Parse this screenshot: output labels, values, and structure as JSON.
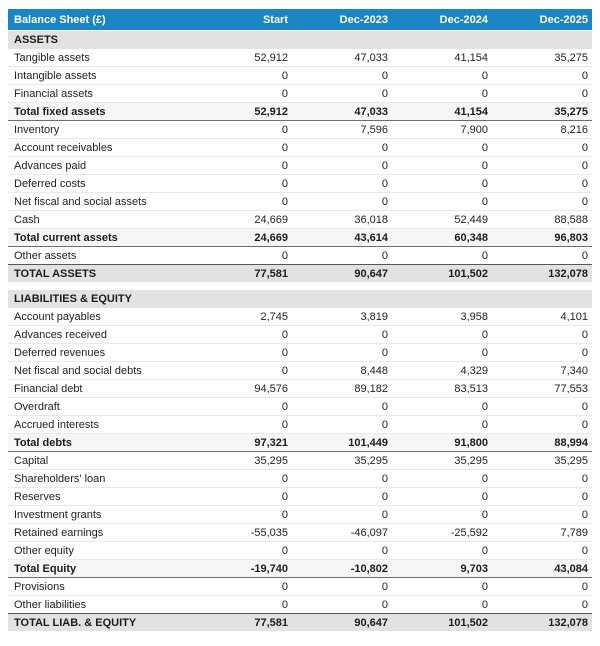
{
  "header": {
    "title": "Balance Sheet (£)",
    "columns": [
      "Start",
      "Dec-2023",
      "Dec-2024",
      "Dec-2025"
    ]
  },
  "colors": {
    "header_bg": "#1b84c5",
    "header_text": "#ffffff",
    "section_bg": "#e2e2e2",
    "subtotal_bg": "#f6f6f6",
    "grandtotal_bg": "#e2e2e2",
    "row_border": "#e9e9e9",
    "total_border": "#565656"
  },
  "sections": [
    {
      "title": "ASSETS",
      "rows": [
        {
          "label": "Tangible assets",
          "values": [
            "52,912",
            "47,033",
            "41,154",
            "35,275"
          ],
          "style": "normal"
        },
        {
          "label": "Intangible assets",
          "values": [
            "0",
            "0",
            "0",
            "0"
          ],
          "style": "normal"
        },
        {
          "label": "Financial assets",
          "values": [
            "0",
            "0",
            "0",
            "0"
          ],
          "style": "normal"
        },
        {
          "label": "Total fixed assets",
          "values": [
            "52,912",
            "47,033",
            "41,154",
            "35,275"
          ],
          "style": "subtotal"
        },
        {
          "label": "Inventory",
          "values": [
            "0",
            "7,596",
            "7,900",
            "8,216"
          ],
          "style": "normal"
        },
        {
          "label": "Account receivables",
          "values": [
            "0",
            "0",
            "0",
            "0"
          ],
          "style": "normal"
        },
        {
          "label": "Advances paid",
          "values": [
            "0",
            "0",
            "0",
            "0"
          ],
          "style": "normal"
        },
        {
          "label": "Deferred costs",
          "values": [
            "0",
            "0",
            "0",
            "0"
          ],
          "style": "normal"
        },
        {
          "label": "Net fiscal and social assets",
          "values": [
            "0",
            "0",
            "0",
            "0"
          ],
          "style": "normal"
        },
        {
          "label": "Cash",
          "values": [
            "24,669",
            "36,018",
            "52,449",
            "88,588"
          ],
          "style": "normal"
        },
        {
          "label": "Total current assets",
          "values": [
            "24,669",
            "43,614",
            "60,348",
            "96,803"
          ],
          "style": "subtotal"
        },
        {
          "label": "Other assets",
          "values": [
            "0",
            "0",
            "0",
            "0"
          ],
          "style": "normal"
        },
        {
          "label": "TOTAL ASSETS",
          "values": [
            "77,581",
            "90,647",
            "101,502",
            "132,078"
          ],
          "style": "grandtotal"
        }
      ]
    },
    {
      "title": "LIABILITIES & EQUITY",
      "rows": [
        {
          "label": "Account payables",
          "values": [
            "2,745",
            "3,819",
            "3,958",
            "4,101"
          ],
          "style": "normal"
        },
        {
          "label": "Advances received",
          "values": [
            "0",
            "0",
            "0",
            "0"
          ],
          "style": "normal"
        },
        {
          "label": "Deferred revenues",
          "values": [
            "0",
            "0",
            "0",
            "0"
          ],
          "style": "normal"
        },
        {
          "label": "Net fiscal and social debts",
          "values": [
            "0",
            "8,448",
            "4,329",
            "7,340"
          ],
          "style": "normal"
        },
        {
          "label": "Financial debt",
          "values": [
            "94,576",
            "89,182",
            "83,513",
            "77,553"
          ],
          "style": "normal"
        },
        {
          "label": "Overdraft",
          "values": [
            "0",
            "0",
            "0",
            "0"
          ],
          "style": "normal"
        },
        {
          "label": "Accrued interests",
          "values": [
            "0",
            "0",
            "0",
            "0"
          ],
          "style": "normal"
        },
        {
          "label": "Total debts",
          "values": [
            "97,321",
            "101,449",
            "91,800",
            "88,994"
          ],
          "style": "subtotal"
        },
        {
          "label": "Capital",
          "values": [
            "35,295",
            "35,295",
            "35,295",
            "35,295"
          ],
          "style": "normal"
        },
        {
          "label": "Shareholders' loan",
          "values": [
            "0",
            "0",
            "0",
            "0"
          ],
          "style": "normal"
        },
        {
          "label": "Reserves",
          "values": [
            "0",
            "0",
            "0",
            "0"
          ],
          "style": "normal"
        },
        {
          "label": "Investment grants",
          "values": [
            "0",
            "0",
            "0",
            "0"
          ],
          "style": "normal"
        },
        {
          "label": "Retained earnings",
          "values": [
            "-55,035",
            "-46,097",
            "-25,592",
            "7,789"
          ],
          "style": "normal"
        },
        {
          "label": "Other equity",
          "values": [
            "0",
            "0",
            "0",
            "0"
          ],
          "style": "normal"
        },
        {
          "label": "Total Equity",
          "values": [
            "-19,740",
            "-10,802",
            "9,703",
            "43,084"
          ],
          "style": "subtotal"
        },
        {
          "label": "Provisions",
          "values": [
            "0",
            "0",
            "0",
            "0"
          ],
          "style": "normal"
        },
        {
          "label": "Other liabilities",
          "values": [
            "0",
            "0",
            "0",
            "0"
          ],
          "style": "normal"
        },
        {
          "label": "TOTAL LIAB. & EQUITY",
          "values": [
            "77,581",
            "90,647",
            "101,502",
            "132,078"
          ],
          "style": "grandtotal"
        }
      ]
    }
  ]
}
